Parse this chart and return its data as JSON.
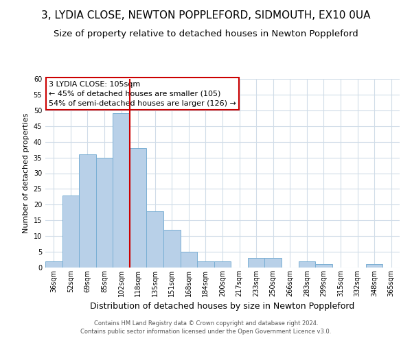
{
  "title": "3, LYDIA CLOSE, NEWTON POPPLEFORD, SIDMOUTH, EX10 0UA",
  "subtitle": "Size of property relative to detached houses in Newton Poppleford",
  "xlabel": "Distribution of detached houses by size in Newton Poppleford",
  "ylabel": "Number of detached properties",
  "bar_labels": [
    "36sqm",
    "52sqm",
    "69sqm",
    "85sqm",
    "102sqm",
    "118sqm",
    "135sqm",
    "151sqm",
    "168sqm",
    "184sqm",
    "200sqm",
    "217sqm",
    "233sqm",
    "250sqm",
    "266sqm",
    "283sqm",
    "299sqm",
    "315sqm",
    "332sqm",
    "348sqm",
    "365sqm"
  ],
  "bar_values": [
    2,
    23,
    36,
    35,
    49,
    38,
    18,
    12,
    5,
    2,
    2,
    0,
    3,
    3,
    0,
    2,
    1,
    0,
    0,
    1,
    0
  ],
  "bar_color": "#b8d0e8",
  "bar_edge_color": "#7aafd4",
  "vline_color": "#cc0000",
  "vline_pos": 4.5,
  "ylim": [
    0,
    60
  ],
  "yticks": [
    0,
    5,
    10,
    15,
    20,
    25,
    30,
    35,
    40,
    45,
    50,
    55,
    60
  ],
  "annotation_title": "3 LYDIA CLOSE: 105sqm",
  "annotation_line1": "← 45% of detached houses are smaller (105)",
  "annotation_line2": "54% of semi-detached houses are larger (126) →",
  "annotation_box_color": "#ffffff",
  "annotation_box_edge": "#cc0000",
  "title_fontsize": 11,
  "subtitle_fontsize": 9.5,
  "xlabel_fontsize": 9,
  "ylabel_fontsize": 8,
  "tick_fontsize": 7,
  "ann_fontsize": 8,
  "footer1": "Contains HM Land Registry data © Crown copyright and database right 2024.",
  "footer2": "Contains public sector information licensed under the Open Government Licence v3.0.",
  "background_color": "#ffffff",
  "grid_color": "#d0dce8"
}
